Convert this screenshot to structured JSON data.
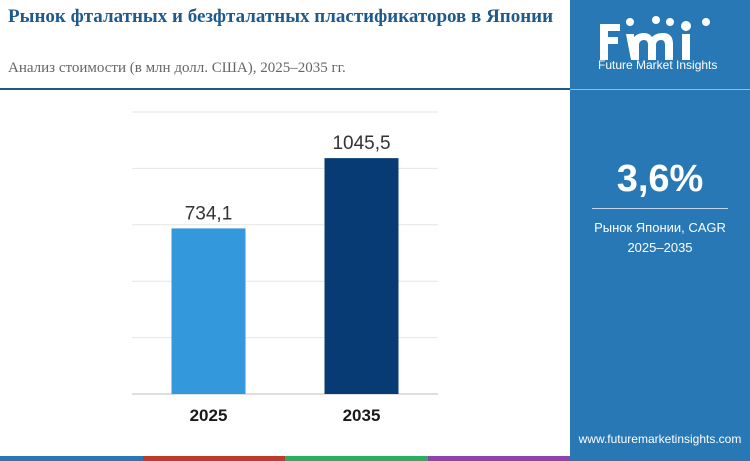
{
  "header": {
    "title": "Рынок фталатных и безфталатных пластификаторов в Японии",
    "subtitle": "Анализ стоимости (в млн долл. США), 2025–2035 гг."
  },
  "sidebar": {
    "brand_name": "Future Market Insights",
    "cagr_value": "3,6%",
    "cagr_label_line1": "Рынок Японии, CAGR",
    "cagr_label_line2": "2025–2035",
    "website": "www.futuremarketinsights.com"
  },
  "colors": {
    "accent": "#2878b5",
    "title": "#1f5a8c",
    "bar_2025": "#3398dc",
    "bar_2035": "#063b73",
    "strip": [
      "#2878b5",
      "#c0392b",
      "#27ae60",
      "#8e44ad"
    ]
  },
  "chart_data": {
    "type": "bar",
    "categories": [
      "2025",
      "2035"
    ],
    "values": [
      734.1,
      1045.5
    ],
    "value_labels": [
      "734,1",
      "1045,5"
    ],
    "ylim": [
      0,
      1250
    ],
    "grid": true,
    "xlabel": "",
    "ylabel": ""
  }
}
